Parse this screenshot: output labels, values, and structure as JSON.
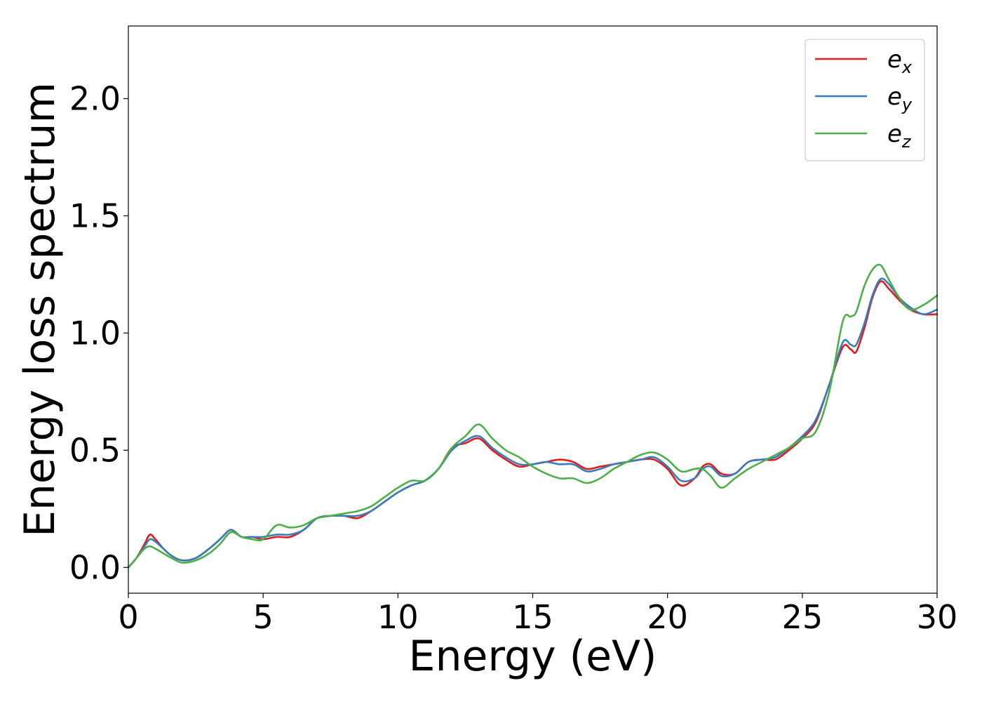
{
  "chart_data": {
    "type": "line",
    "xlabel": "Energy (eV)",
    "ylabel": "Energy loss spectrum",
    "xlim": [
      0,
      30
    ],
    "ylim": [
      -0.11,
      2.31
    ],
    "xticks": [
      0,
      5,
      10,
      15,
      20,
      25,
      30
    ],
    "xtick_labels": [
      "0",
      "5",
      "10",
      "15",
      "20",
      "25",
      "30"
    ],
    "yticks": [
      0.0,
      0.5,
      1.0,
      1.5,
      2.0
    ],
    "ytick_labels": [
      "0.0",
      "0.5",
      "1.0",
      "1.5",
      "2.0"
    ],
    "grid": false,
    "legend_position": "top-right",
    "x": [
      0,
      0.3,
      0.6,
      0.8,
      1.0,
      1.3,
      1.6,
      2.0,
      2.5,
      3.0,
      3.4,
      3.8,
      4.2,
      4.6,
      5.0,
      5.5,
      6.0,
      6.5,
      7.0,
      7.5,
      8.0,
      8.5,
      9.0,
      9.5,
      10.0,
      10.5,
      11.0,
      11.5,
      12.0,
      12.5,
      13.0,
      13.5,
      14.0,
      14.5,
      15.0,
      15.5,
      16.0,
      16.5,
      17.0,
      17.5,
      18.0,
      18.5,
      19.0,
      19.5,
      20.0,
      20.5,
      21.0,
      21.3,
      21.6,
      22.0,
      22.5,
      23.0,
      23.5,
      24.0,
      24.5,
      25.0,
      25.5,
      26.0,
      26.5,
      26.8,
      27.0,
      27.3,
      27.6,
      27.9,
      28.2,
      28.6,
      29.0,
      29.5,
      30.0
    ],
    "series": [
      {
        "name": "e_x",
        "label_base": "e",
        "label_sub": "x",
        "color": "#e41a1c",
        "values": [
          0.0,
          0.04,
          0.1,
          0.14,
          0.12,
          0.08,
          0.05,
          0.03,
          0.04,
          0.08,
          0.12,
          0.16,
          0.13,
          0.13,
          0.12,
          0.13,
          0.13,
          0.16,
          0.21,
          0.22,
          0.22,
          0.21,
          0.24,
          0.28,
          0.32,
          0.35,
          0.37,
          0.42,
          0.51,
          0.53,
          0.55,
          0.5,
          0.46,
          0.43,
          0.44,
          0.45,
          0.46,
          0.45,
          0.42,
          0.43,
          0.44,
          0.45,
          0.46,
          0.46,
          0.42,
          0.35,
          0.38,
          0.43,
          0.44,
          0.4,
          0.4,
          0.45,
          0.46,
          0.46,
          0.5,
          0.55,
          0.62,
          0.78,
          0.94,
          0.93,
          0.92,
          1.02,
          1.15,
          1.22,
          1.19,
          1.14,
          1.1,
          1.08,
          1.08
        ]
      },
      {
        "name": "e_y",
        "label_base": "e",
        "label_sub": "y",
        "color": "#377eb8",
        "values": [
          0.0,
          0.04,
          0.09,
          0.12,
          0.11,
          0.08,
          0.05,
          0.03,
          0.04,
          0.08,
          0.12,
          0.16,
          0.13,
          0.13,
          0.13,
          0.14,
          0.14,
          0.16,
          0.21,
          0.22,
          0.22,
          0.22,
          0.24,
          0.28,
          0.32,
          0.35,
          0.37,
          0.42,
          0.5,
          0.54,
          0.56,
          0.51,
          0.47,
          0.44,
          0.44,
          0.45,
          0.44,
          0.44,
          0.41,
          0.42,
          0.44,
          0.45,
          0.46,
          0.47,
          0.43,
          0.37,
          0.38,
          0.42,
          0.43,
          0.39,
          0.4,
          0.45,
          0.46,
          0.47,
          0.51,
          0.56,
          0.63,
          0.78,
          0.96,
          0.95,
          0.95,
          1.04,
          1.16,
          1.23,
          1.21,
          1.15,
          1.11,
          1.08,
          1.1
        ]
      },
      {
        "name": "e_z",
        "label_base": "e",
        "label_sub": "z",
        "color": "#4daf4a",
        "values": [
          0.0,
          0.04,
          0.08,
          0.09,
          0.08,
          0.06,
          0.04,
          0.02,
          0.03,
          0.06,
          0.1,
          0.15,
          0.13,
          0.12,
          0.12,
          0.18,
          0.17,
          0.18,
          0.21,
          0.22,
          0.23,
          0.24,
          0.26,
          0.3,
          0.34,
          0.37,
          0.37,
          0.42,
          0.51,
          0.56,
          0.61,
          0.55,
          0.5,
          0.47,
          0.43,
          0.4,
          0.38,
          0.38,
          0.36,
          0.38,
          0.42,
          0.45,
          0.48,
          0.49,
          0.46,
          0.41,
          0.42,
          0.42,
          0.39,
          0.34,
          0.38,
          0.42,
          0.45,
          0.48,
          0.51,
          0.55,
          0.58,
          0.75,
          1.05,
          1.07,
          1.09,
          1.2,
          1.27,
          1.29,
          1.23,
          1.15,
          1.1,
          1.12,
          1.16
        ]
      }
    ]
  }
}
